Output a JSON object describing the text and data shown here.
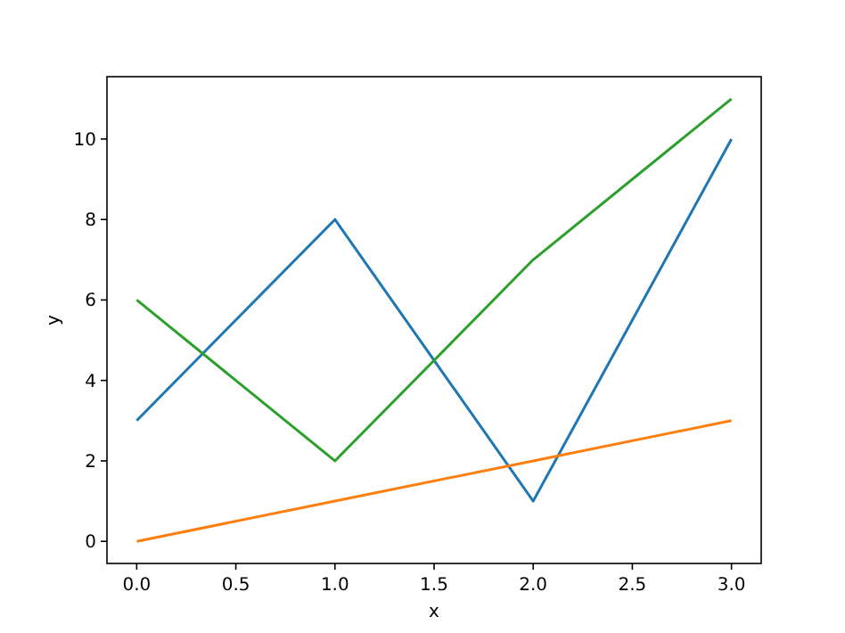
{
  "chart_data": {
    "type": "line",
    "xlabel": "x",
    "ylabel": "y",
    "x": [
      0,
      1,
      2,
      3
    ],
    "series": [
      {
        "color": "#1f77b4",
        "values": [
          3,
          8,
          1,
          10
        ]
      },
      {
        "color": "#ff7f0e",
        "values": [
          0,
          1,
          2,
          3
        ]
      },
      {
        "color": "#2ca02c",
        "values": [
          6,
          2,
          7,
          11
        ]
      }
    ],
    "xlim": [
      -0.15,
      3.15
    ],
    "xticks": [
      {
        "value": 0,
        "label": "0.0"
      },
      {
        "value": 0.5,
        "label": "0.5"
      },
      {
        "value": 1,
        "label": "1.0"
      },
      {
        "value": 1.5,
        "label": "1.5"
      },
      {
        "value": 2,
        "label": "2.0"
      },
      {
        "value": 2.5,
        "label": "2.5"
      },
      {
        "value": 3,
        "label": "3.0"
      }
    ],
    "ylim": [
      -0.55,
      11.55
    ],
    "yticks": [
      0,
      2,
      4,
      6,
      8,
      10
    ],
    "marker": "none",
    "line_style": "solid"
  }
}
